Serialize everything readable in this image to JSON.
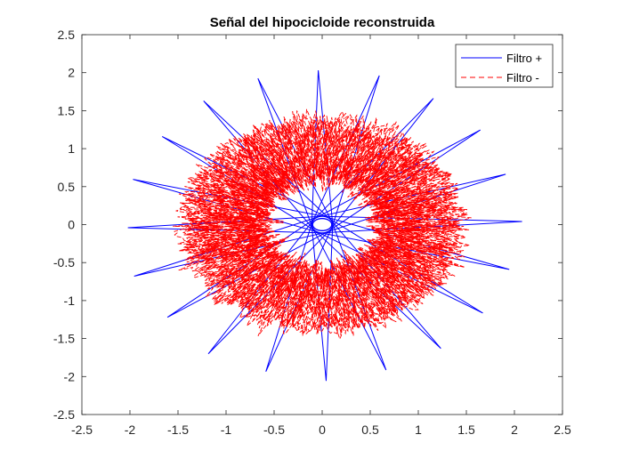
{
  "chart_data": {
    "type": "line",
    "title": "Señal del hipocicloide reconstruida",
    "xlabel": "",
    "ylabel": "",
    "xlim": [
      -2.5,
      2.5
    ],
    "ylim": [
      -2.5,
      2.5
    ],
    "xticks": [
      "-2.5",
      "-2",
      "-1.5",
      "-1",
      "-0.5",
      "0",
      "0.5",
      "1",
      "1.5",
      "2",
      "2.5"
    ],
    "yticks": [
      "2.5",
      "2",
      "1.5",
      "1",
      "0.5",
      "0",
      "-0.5",
      "-1",
      "-1.5",
      "-2",
      "-2.5"
    ],
    "grid": false,
    "legend_position": "top-right",
    "series": [
      {
        "name": "Filtro +",
        "color": "#0000ff",
        "style": "solid",
        "shape": "star of 20 spikes reaching radius ~2.1 from center, passing through inner loops near origin (radius ~0.1)"
      },
      {
        "name": "Filtro -",
        "color": "#ff0000",
        "style": "dashed",
        "shape": "noisy annulus with inner radius ~0.6 and outer radius ~1.45"
      }
    ]
  }
}
